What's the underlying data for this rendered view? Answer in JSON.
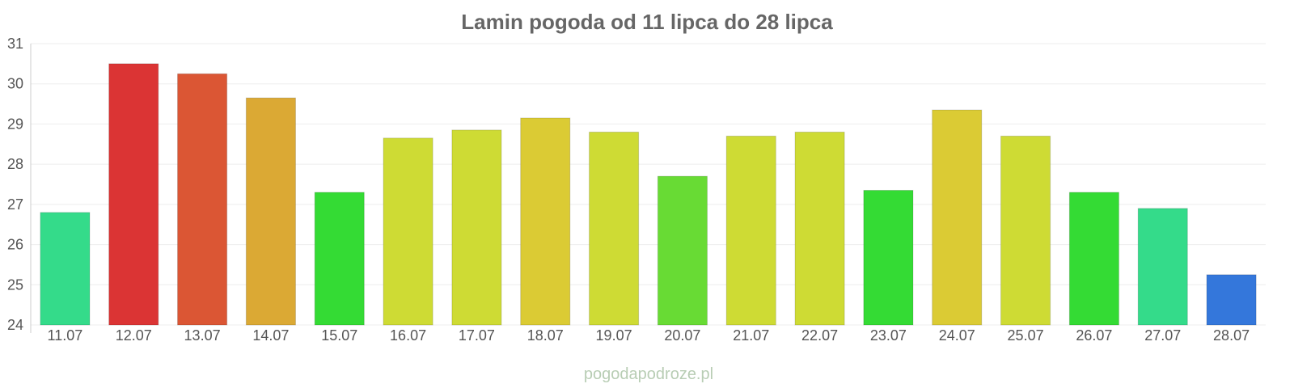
{
  "chart_data": {
    "type": "bar",
    "title": "Lamin pogoda od 11 lipca do 28 lipca",
    "xlabel": "",
    "ylabel": "",
    "ylim": [
      24,
      31
    ],
    "yticks": [
      24,
      25,
      26,
      27,
      28,
      29,
      30,
      31
    ],
    "grid": true,
    "categories": [
      "11.07",
      "12.07",
      "13.07",
      "14.07",
      "15.07",
      "16.07",
      "17.07",
      "18.07",
      "19.07",
      "20.07",
      "21.07",
      "22.07",
      "23.07",
      "24.07",
      "25.07",
      "26.07",
      "27.07",
      "28.07"
    ],
    "values": [
      26.8,
      30.5,
      30.25,
      29.65,
      27.3,
      28.65,
      28.85,
      29.15,
      28.8,
      27.7,
      28.7,
      28.8,
      27.35,
      29.35,
      28.7,
      27.3,
      26.9,
      25.25
    ],
    "colors": [
      "#34db8a",
      "#db3434",
      "#db5634",
      "#dba934",
      "#34db34",
      "#cedb34",
      "#cedb34",
      "#dbcb34",
      "#cedb34",
      "#68db34",
      "#cedb34",
      "#cedb34",
      "#34db34",
      "#dbcb34",
      "#cedb34",
      "#34db34",
      "#34db8a",
      "#3477db"
    ]
  },
  "credit": "pogodapodroze.pl"
}
